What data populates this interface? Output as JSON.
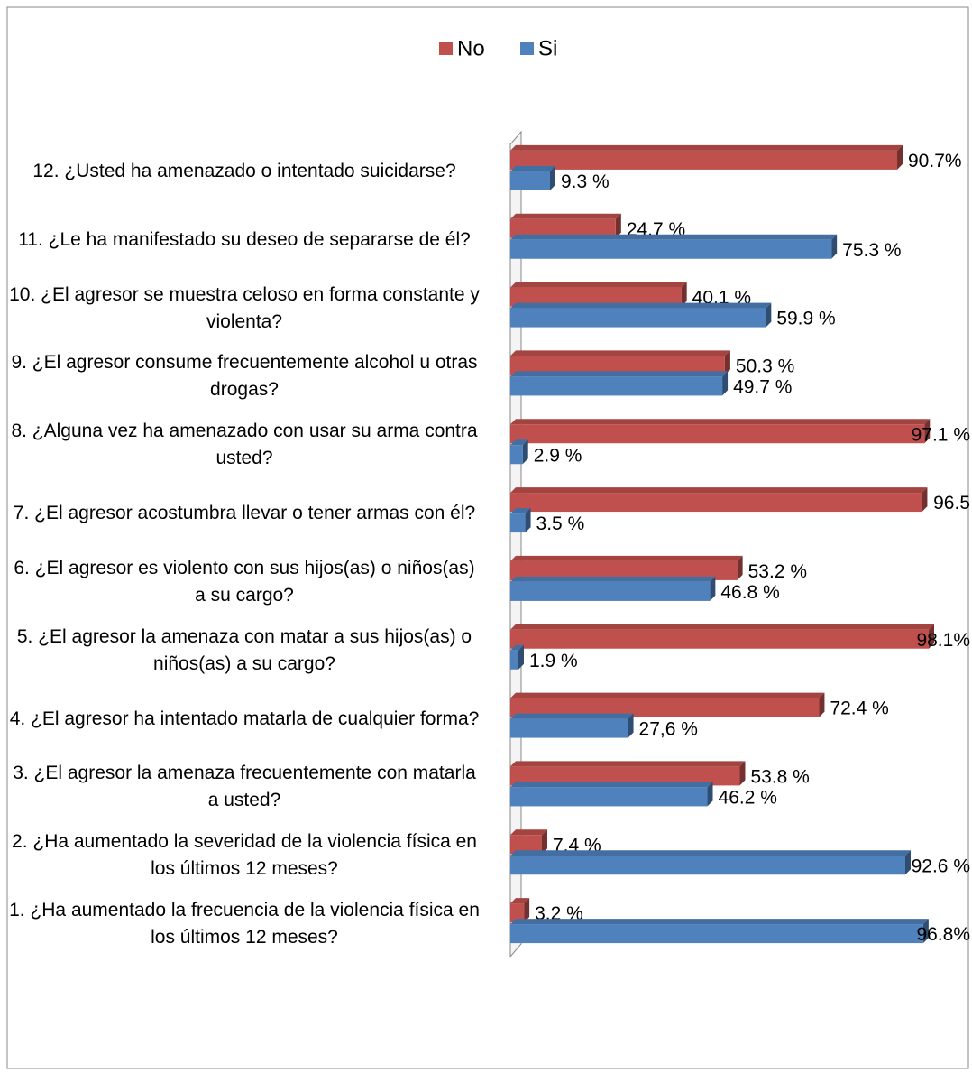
{
  "chart_data": {
    "type": "bar",
    "orientation": "horizontal",
    "categories": [
      "12. ¿Usted ha amenazado o intentado suicidarse?",
      "11. ¿Le ha manifestado su deseo de separarse de él?",
      "10. ¿El agresor se muestra celoso en forma constante y violenta?",
      "9. ¿El agresor consume frecuentemente alcohol u otras drogas?",
      "8. ¿Alguna vez ha amenazado con usar su arma contra usted?",
      "7. ¿El agresor acostumbra llevar o tener armas con él?",
      "6. ¿El agresor es violento con sus hijos(as) o niños(as) a su cargo?",
      "5. ¿El agresor la amenaza con matar a sus hijos(as) o niños(as) a su cargo?",
      "4. ¿El agresor ha intentado matarla de cualquier forma?",
      "3. ¿El agresor la amenaza frecuentemente con matarla a usted?",
      "2. ¿Ha aumentado la severidad de la violencia física en los últimos 12 meses?",
      "1. ¿Ha aumentado la frecuencia de la violencia física en los últimos 12 meses?"
    ],
    "series": [
      {
        "name": "No",
        "color": "#c0504d",
        "values": [
          90.7,
          24.7,
          40.1,
          50.3,
          97.1,
          96.5,
          53.2,
          98.1,
          72.4,
          53.8,
          7.4,
          3.2
        ],
        "value_labels": [
          "90.7%",
          "24.7 %",
          "40.1 %",
          "50.3 %",
          "97.1  %",
          "96.5",
          "53.2 %",
          "98.1%",
          "72.4 %",
          "53.8 %",
          "7.4 %",
          "3.2 %"
        ]
      },
      {
        "name": "Si",
        "color": "#4f81bd",
        "values": [
          9.3,
          75.3,
          59.9,
          49.7,
          2.9,
          3.5,
          46.8,
          1.9,
          27.6,
          46.2,
          92.6,
          96.8
        ],
        "value_labels": [
          "9.3 %",
          "75.3 %",
          "59.9 %",
          "49.7 %",
          "2.9 %",
          "3.5 %",
          "46.8 %",
          "1.9 %",
          "27,6 %",
          "46.2 %",
          "92.6 %",
          "96.8%"
        ]
      }
    ],
    "xlim": [
      0,
      100
    ],
    "legend": "top"
  }
}
